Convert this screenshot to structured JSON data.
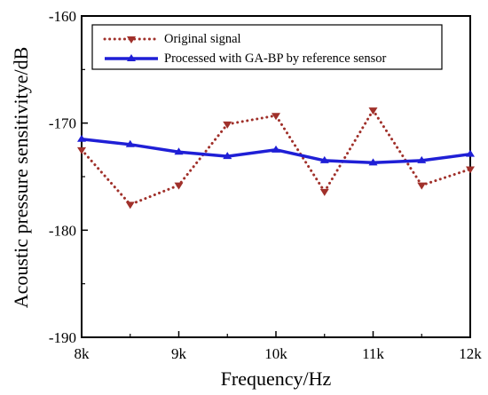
{
  "chart_data": {
    "type": "line",
    "xlabel": "Frequency/Hz",
    "ylabel": "Acoustic pressure sensitivitye/dB",
    "xlim": [
      8000,
      12000
    ],
    "ylim": [
      -190,
      -160
    ],
    "x_ticks": [
      8000,
      9000,
      10000,
      11000,
      12000
    ],
    "x_tick_labels": [
      "8k",
      "9k",
      "10k",
      "11k",
      "12k"
    ],
    "y_ticks": [
      -190,
      -180,
      -170,
      -160
    ],
    "y_tick_labels": [
      "-190",
      "-180",
      "-170",
      "-160"
    ],
    "grid": false,
    "legend_position": "top-right",
    "x": [
      8000,
      8500,
      9000,
      9500,
      10000,
      10500,
      11000,
      11500,
      12000
    ],
    "series": [
      {
        "name": "Original signal",
        "color": "#a0302a",
        "line_style": "dotted",
        "marker": "triangle-down",
        "values": [
          -172.5,
          -177.6,
          -175.8,
          -170.1,
          -169.3,
          -176.4,
          -168.8,
          -175.8,
          -174.3
        ]
      },
      {
        "name": "Processed with GA-BP by reference sensor",
        "color": "#1f1fd6",
        "line_style": "solid",
        "marker": "triangle-up",
        "values": [
          -171.5,
          -172.0,
          -172.7,
          -173.1,
          -172.5,
          -173.5,
          -173.7,
          -173.5,
          -172.9
        ]
      }
    ]
  }
}
